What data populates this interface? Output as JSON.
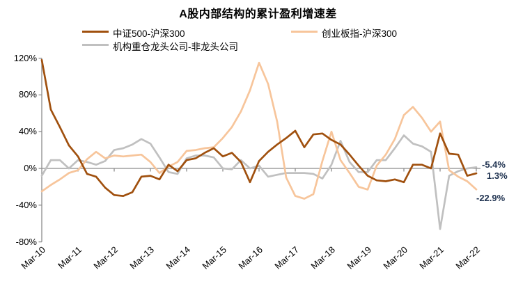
{
  "title": "A股内部结构的累计盈利增速差",
  "colors": {
    "csi500_line": "#A0500E",
    "chinext_line": "#F7C59B",
    "institution_line": "#C0C0C0",
    "axis": "#8C8C8C",
    "end_label_text": "#1F3250",
    "text": "#000000"
  },
  "end_labels": [
    {
      "series": "中证500-沪深300",
      "text": "-5.4%"
    },
    {
      "series": "机构重仓龙头公司-非龙头公司",
      "text": "1.3%"
    },
    {
      "series": "创业板指-沪深300",
      "text": "-22.9%"
    }
  ],
  "chart_data": {
    "type": "line",
    "title": "A股内部结构的累计盈利增速差",
    "x_axis": {
      "tick_labels": [
        "Mar-10",
        "Mar-11",
        "Mar-12",
        "Mar-13",
        "Mar-14",
        "Mar-15",
        "Mar-16",
        "Mar-17",
        "Mar-18",
        "Mar-19",
        "Mar-20",
        "Mar-21",
        "Mar-22"
      ],
      "start": "Mar-10",
      "end": "Mar-22",
      "points_per_year": 4
    },
    "y_axis": {
      "tick_labels": [
        "120%",
        "80%",
        "40%",
        "0%",
        "-40%",
        "-80%"
      ],
      "tick_values": [
        120,
        80,
        40,
        0,
        -40,
        -80
      ],
      "min": -80,
      "max": 120,
      "unit": "%"
    },
    "grid": "off",
    "legend_position": "top",
    "series": [
      {
        "name": "中证500-沪深300",
        "color": "#A0500E",
        "end_label": "-5.4%",
        "values": [
          118,
          64,
          45,
          25,
          13,
          -6,
          -9,
          -21,
          -29,
          -30,
          -26,
          -9,
          -8,
          -12,
          4,
          -3,
          9,
          11,
          17,
          22,
          13,
          17,
          7,
          -15,
          8,
          18,
          26,
          33,
          41,
          23,
          37,
          38,
          31,
          26,
          15,
          3,
          -8,
          -13,
          -14,
          -12,
          -15,
          4,
          4,
          0,
          38,
          16,
          15,
          -8,
          -5.4
        ]
      },
      {
        "name": "创业板指-沪深300",
        "color": "#F7C59B",
        "end_label": "-22.9%",
        "values": [
          -25,
          -18,
          -12,
          -5,
          -2,
          10,
          18,
          11,
          14,
          13,
          14,
          15,
          7,
          -5,
          2,
          7,
          19,
          20,
          22,
          23,
          33,
          45,
          62,
          85,
          115,
          92,
          51,
          -10,
          -30,
          -33,
          -28,
          8,
          40,
          9,
          -5,
          -20,
          -23,
          3,
          15,
          32,
          58,
          67,
          55,
          40,
          51,
          -2,
          -9,
          -14,
          -22.9
        ]
      },
      {
        "name": "机构重仓龙头公司-非龙头公司",
        "color": "#C0C0C0",
        "end_label": "1.3%",
        "values": [
          -8,
          9,
          9,
          0,
          9,
          7,
          4,
          8,
          20,
          22,
          26,
          32,
          27,
          12,
          -4,
          -6,
          11,
          14,
          14,
          12,
          0,
          -1,
          9,
          0,
          3,
          -9,
          -7,
          -5,
          -5,
          -5,
          -6,
          -11,
          4,
          30,
          7,
          -4,
          -4,
          9,
          9,
          22,
          36,
          27,
          24,
          18,
          -66,
          -8,
          -3,
          0,
          1.3
        ]
      }
    ]
  }
}
